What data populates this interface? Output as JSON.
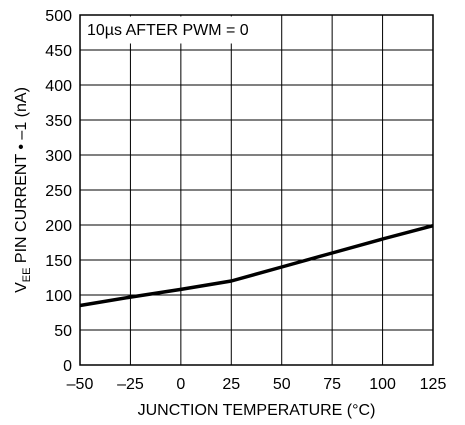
{
  "chart_data": {
    "type": "line",
    "annotation": "10µs AFTER PWM = 0",
    "xlabel": "JUNCTION TEMPERATURE (°C)",
    "ylabel": {
      "prefix": "V",
      "subscript": "EE",
      "suffix": " PIN CURRENT • –1 (nA)"
    },
    "xlim": [
      -50,
      125
    ],
    "ylim": [
      0,
      500
    ],
    "x_ticks": [
      -50,
      -25,
      0,
      25,
      50,
      75,
      100,
      125
    ],
    "x_tick_labels": [
      "–50",
      "–25",
      "0",
      "25",
      "50",
      "75",
      "100",
      "125"
    ],
    "y_ticks": [
      0,
      50,
      100,
      150,
      200,
      250,
      300,
      350,
      400,
      450,
      500
    ],
    "y_tick_labels": [
      "0",
      "50",
      "100",
      "150",
      "200",
      "250",
      "300",
      "350",
      "400",
      "450",
      "500"
    ],
    "grid": true,
    "series": [
      {
        "x": [
          -50,
          -25,
          0,
          25,
          50,
          75,
          100,
          125
        ],
        "y": [
          85,
          97,
          108,
          120,
          140,
          160,
          180,
          199
        ]
      }
    ]
  }
}
